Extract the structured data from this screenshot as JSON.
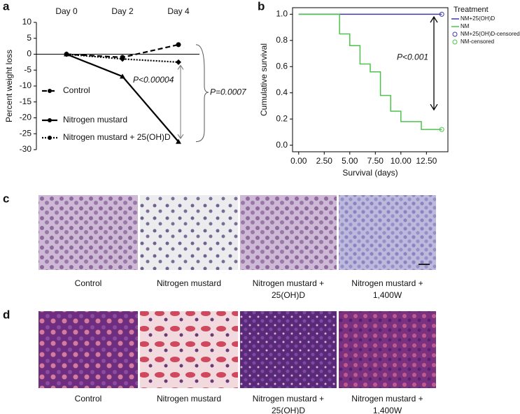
{
  "chart_data": [
    {
      "type": "line",
      "panel_label": "a",
      "ylabel": "Percent weight loss",
      "categories": [
        "Day 0",
        "Day 2",
        "Day 4"
      ],
      "ylim": [
        -30,
        10
      ],
      "yticks": [
        10,
        5,
        0,
        -5,
        -10,
        -15,
        -20,
        -25,
        -30
      ],
      "series": [
        {
          "name": "Control",
          "color": "#000000",
          "linestyle": "dashed",
          "marker": "circle",
          "values": [
            0,
            -1,
            3
          ]
        },
        {
          "name": "Nitrogen mustard",
          "color": "#000000",
          "linestyle": "solid",
          "marker": "triangle",
          "values": [
            0,
            -7,
            -27.5
          ]
        },
        {
          "name": "Nitrogen mustard + 25(OH)D",
          "color": "#000000",
          "linestyle": "dotted",
          "marker": "diamond",
          "values": [
            0,
            -1.5,
            -2.5
          ]
        }
      ],
      "annotations": [
        "P<0.00004",
        "P=0.0007"
      ]
    },
    {
      "type": "line",
      "panel_label": "b",
      "xlabel": "Survival (days)",
      "ylabel": "Cumulative survival",
      "xlim": [
        -0.6,
        14.6
      ],
      "xticks": [
        {
          "value": 0,
          "label": "0.00"
        },
        {
          "value": 2.5,
          "label": "2.50"
        },
        {
          "value": 5,
          "label": "5.00"
        },
        {
          "value": 7.5,
          "label": "7.50"
        },
        {
          "value": 10,
          "label": "10.00"
        },
        {
          "value": 12.5,
          "label": "12.50"
        }
      ],
      "ylim": [
        -0.05,
        1.05
      ],
      "yticks": [
        {
          "value": 0,
          "label": "0.0"
        },
        0.2,
        0.4,
        0.6,
        0.8,
        {
          "value": 1,
          "label": "1.0"
        }
      ],
      "legend_title": "Treatment",
      "series": [
        {
          "name": "NM+25(OH)D",
          "color": "#3a3aa8",
          "style": "steps",
          "x": [
            0,
            14
          ],
          "values": [
            1,
            1
          ]
        },
        {
          "name": "NM",
          "color": "#4cc44c",
          "style": "steps",
          "x": [
            0,
            4,
            5,
            6,
            7,
            8,
            9,
            10,
            12,
            14
          ],
          "values": [
            1,
            0.85,
            0.76,
            0.62,
            0.56,
            0.38,
            0.26,
            0.18,
            0.12,
            0.12
          ]
        },
        {
          "name": "NM+25(OH)D-censored",
          "color": "#3a3aa8",
          "style": "markers",
          "x": [
            14
          ],
          "values": [
            1
          ]
        },
        {
          "name": "NM-censored",
          "color": "#4cc44c",
          "style": "markers",
          "x": [
            14
          ],
          "values": [
            0.12
          ]
        }
      ],
      "annotations": [
        "P<0.001"
      ]
    }
  ],
  "panels": [
    {
      "label": "c",
      "captions": [
        [
          "Control"
        ],
        [
          "Nitrogen mustard"
        ],
        [
          "Nitrogen mustard +",
          "25(OH)D"
        ],
        [
          "Nitrogen mustard +",
          "1,400W"
        ]
      ]
    },
    {
      "label": "d",
      "captions": [
        [
          "Control"
        ],
        [
          "Nitrogen mustard"
        ],
        [
          "Nitrogen mustard +",
          "25(OH)D"
        ],
        [
          "Nitrogen mustard +",
          "1,400W"
        ]
      ]
    }
  ]
}
